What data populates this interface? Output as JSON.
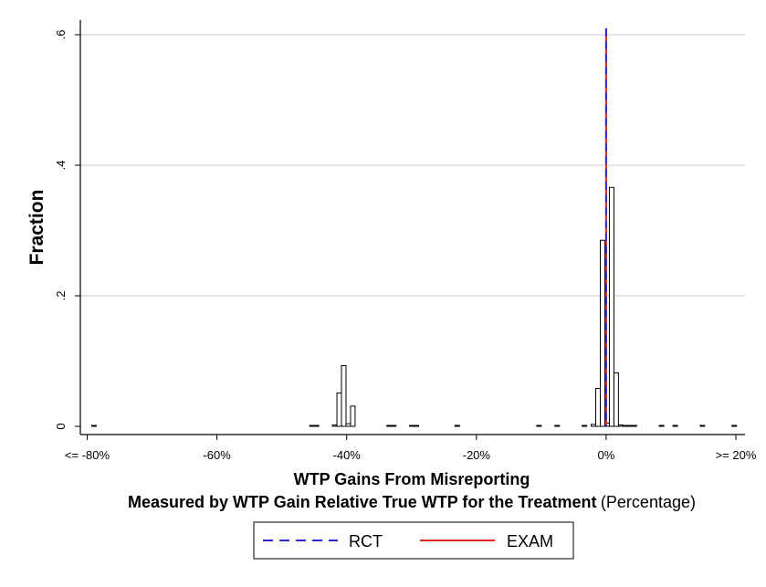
{
  "chart_data": {
    "type": "bar",
    "ylabel": "Fraction",
    "xlabel_line1": "WTP Gains From Misreporting",
    "xlabel_line2_bold": "Measured by WTP Gain Relative True WTP for the Treatment",
    "xlabel_line2_normal": "(Percentage)",
    "ylim": [
      0,
      0.6
    ],
    "xlim": [
      -80,
      20
    ],
    "y_ticks": [
      {
        "value": 0,
        "label": "0"
      },
      {
        "value": 0.2,
        "label": ".2"
      },
      {
        "value": 0.4,
        "label": ".4"
      },
      {
        "value": 0.6,
        "label": ".6"
      }
    ],
    "x_ticks": [
      {
        "value": -80,
        "label": "<= -80%"
      },
      {
        "value": -60,
        "label": "-60%"
      },
      {
        "value": -40,
        "label": "-40%"
      },
      {
        "value": -20,
        "label": "-20%"
      },
      {
        "value": 0,
        "label": "0%"
      },
      {
        "value": 20,
        "label": ">= 20%"
      }
    ],
    "grid": true,
    "bin_width": 0.7,
    "bins": [
      {
        "x": -79.3,
        "value": 0.001
      },
      {
        "x": -45.7,
        "value": 0.001
      },
      {
        "x": -45.0,
        "value": 0.001
      },
      {
        "x": -42.2,
        "value": 0.002
      },
      {
        "x": -41.5,
        "value": 0.051
      },
      {
        "x": -40.8,
        "value": 0.093
      },
      {
        "x": -40.1,
        "value": 0.004
      },
      {
        "x": -39.4,
        "value": 0.031
      },
      {
        "x": -33.8,
        "value": 0.001
      },
      {
        "x": -33.1,
        "value": 0.001
      },
      {
        "x": -30.3,
        "value": 0.001
      },
      {
        "x": -29.6,
        "value": 0.001
      },
      {
        "x": -23.3,
        "value": 0.001
      },
      {
        "x": -10.7,
        "value": 0.001
      },
      {
        "x": -7.9,
        "value": 0.001
      },
      {
        "x": -3.7,
        "value": 0.001
      },
      {
        "x": -2.3,
        "value": 0.003
      },
      {
        "x": -1.6,
        "value": 0.058
      },
      {
        "x": -0.9,
        "value": 0.285
      },
      {
        "x": -0.2,
        "value": 0.005
      },
      {
        "x": 0.5,
        "value": 0.366
      },
      {
        "x": 1.2,
        "value": 0.082
      },
      {
        "x": 1.9,
        "value": 0.002
      },
      {
        "x": 2.6,
        "value": 0.001
      },
      {
        "x": 3.3,
        "value": 0.001
      },
      {
        "x": 4.0,
        "value": 0.001
      },
      {
        "x": 8.2,
        "value": 0.001
      },
      {
        "x": 10.3,
        "value": 0.001
      },
      {
        "x": 14.5,
        "value": 0.001
      },
      {
        "x": 19.4,
        "value": 0.001
      }
    ],
    "reference_lines": [
      {
        "name": "EXAM",
        "x": 0,
        "style": "solid",
        "color": "#e8261f"
      },
      {
        "name": "RCT",
        "x": 0,
        "style": "dashed",
        "color": "#2b2bd0"
      }
    ],
    "legend": {
      "position": "bottom-center",
      "entries": [
        {
          "label": "RCT",
          "style": "dashed",
          "color": "#2b2bd0"
        },
        {
          "label": "EXAM",
          "style": "solid",
          "color": "#e8261f"
        }
      ]
    },
    "colors": {
      "bar_fill": "#ffffff",
      "bar_stroke": "#000000",
      "grid": "#c8c8c8",
      "axis": "#000000"
    }
  }
}
